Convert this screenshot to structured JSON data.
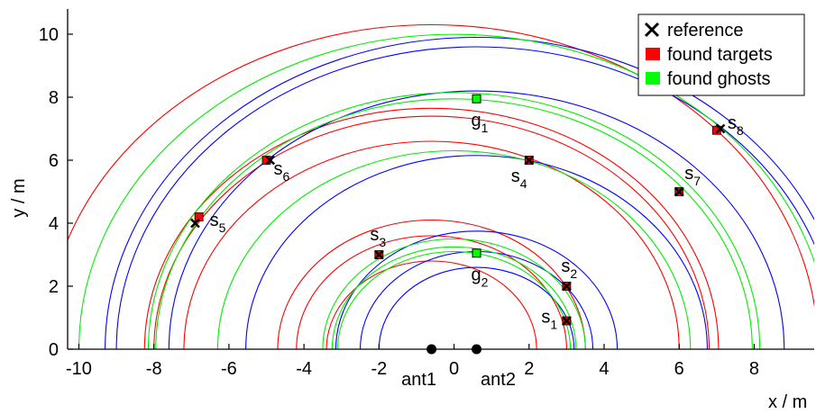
{
  "chart_data": {
    "type": "scatter",
    "title": "",
    "xlabel": "x / m",
    "ylabel": "y / m",
    "xlim": [
      -10.3,
      9.6
    ],
    "ylim": [
      0,
      10.8
    ],
    "xticks": [
      -10,
      -8,
      -6,
      -4,
      -2,
      0,
      2,
      4,
      6,
      8
    ],
    "yticks": [
      0,
      2,
      4,
      6,
      8,
      10
    ],
    "grid": false,
    "legend_position": "top-right",
    "legend": [
      {
        "label": "reference",
        "marker": "cross",
        "color": "#000000"
      },
      {
        "label": "found targets",
        "marker": "square",
        "color": "#ff0000"
      },
      {
        "label": "found ghosts",
        "marker": "square",
        "color": "#00ff00"
      }
    ],
    "antennas": [
      {
        "name": "ant1",
        "x": -0.6,
        "y": 0
      },
      {
        "name": "ant2",
        "x": 0.6,
        "y": 0
      }
    ],
    "reference": [
      {
        "x": 3.0,
        "y": 0.9
      },
      {
        "x": 3.0,
        "y": 2.0
      },
      {
        "x": -2.0,
        "y": 3.0
      },
      {
        "x": 2.0,
        "y": 6.0
      },
      {
        "x": -6.9,
        "y": 4.0
      },
      {
        "x": -4.9,
        "y": 6.0
      },
      {
        "x": 6.0,
        "y": 5.0
      },
      {
        "x": 7.1,
        "y": 7.0
      }
    ],
    "found_targets": [
      {
        "name": "s",
        "sub": "1",
        "x": 3.0,
        "y": 0.9
      },
      {
        "name": "s",
        "sub": "2",
        "x": 3.0,
        "y": 2.0
      },
      {
        "name": "s",
        "sub": "3",
        "x": -2.0,
        "y": 3.0
      },
      {
        "name": "s",
        "sub": "4",
        "x": 2.0,
        "y": 6.0
      },
      {
        "name": "s",
        "sub": "5",
        "x": -6.8,
        "y": 4.2
      },
      {
        "name": "s",
        "sub": "6",
        "x": -5.0,
        "y": 6.0
      },
      {
        "name": "s",
        "sub": "7",
        "x": 6.0,
        "y": 5.0
      },
      {
        "name": "s",
        "sub": "8",
        "x": 7.0,
        "y": 6.95
      }
    ],
    "found_ghosts": [
      {
        "name": "g",
        "sub": "1",
        "x": 0.6,
        "y": 7.95
      },
      {
        "name": "g",
        "sub": "2",
        "x": 0.6,
        "y": 3.05
      }
    ],
    "range_circles": {
      "red": {
        "cx": -0.6,
        "radii": [
          2.8,
          3.6,
          4.1,
          6.6,
          7.4,
          7.65,
          10.3
        ]
      },
      "blue": {
        "cx": 0.6,
        "radii": [
          2.6,
          3.1,
          3.75,
          6.15,
          9.6,
          9.9,
          8.2
        ]
      },
      "green": {
        "cx": 0.0,
        "radii": [
          3.1,
          3.25,
          3.5,
          6.3,
          7.95,
          8.15,
          10.0
        ]
      }
    }
  }
}
